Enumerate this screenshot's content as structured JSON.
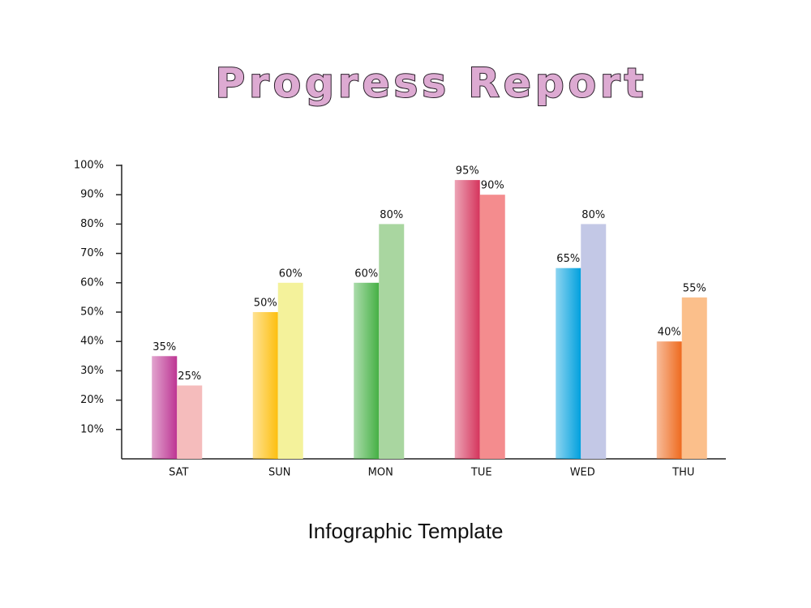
{
  "chart_data": {
    "type": "bar",
    "title": "Progress Report",
    "subtitle": "Infographic Template",
    "categories": [
      "SAT",
      "SUN",
      "MON",
      "TUE",
      "WED",
      "THU"
    ],
    "series": [
      {
        "colors": [
          "#bd3593",
          "#fdbf0f",
          "#45b044",
          "#d5345c",
          "#00a0de",
          "#ee6a1e"
        ],
        "gradient": true,
        "values": [
          35,
          50,
          60,
          95,
          65,
          40
        ],
        "value_labels": [
          "35%",
          "50%",
          "60%",
          "95%",
          "65%",
          "40%"
        ]
      },
      {
        "colors": [
          "#f5bcbc",
          "#f4f29b",
          "#a9d6a0",
          "#f48c8e",
          "#c3c8e6",
          "#fbbf8b"
        ],
        "gradient": false,
        "values": [
          25,
          60,
          80,
          90,
          80,
          55
        ],
        "value_labels": [
          "25%",
          "60%",
          "80%",
          "90%",
          "80%",
          "55%"
        ]
      }
    ],
    "ylim": [
      0,
      100
    ],
    "yticks": [
      {
        "value": 10,
        "label": "10%"
      },
      {
        "value": 20,
        "label": "20%"
      },
      {
        "value": 30,
        "label": "30%"
      },
      {
        "value": 40,
        "label": "40%"
      },
      {
        "value": 50,
        "label": "50%"
      },
      {
        "value": 60,
        "label": "60%"
      },
      {
        "value": 70,
        "label": "70%"
      },
      {
        "value": 80,
        "label": "80%"
      },
      {
        "value": 90,
        "label": "90%"
      },
      {
        "value": 100,
        "label": "100%"
      }
    ],
    "grid": false
  }
}
